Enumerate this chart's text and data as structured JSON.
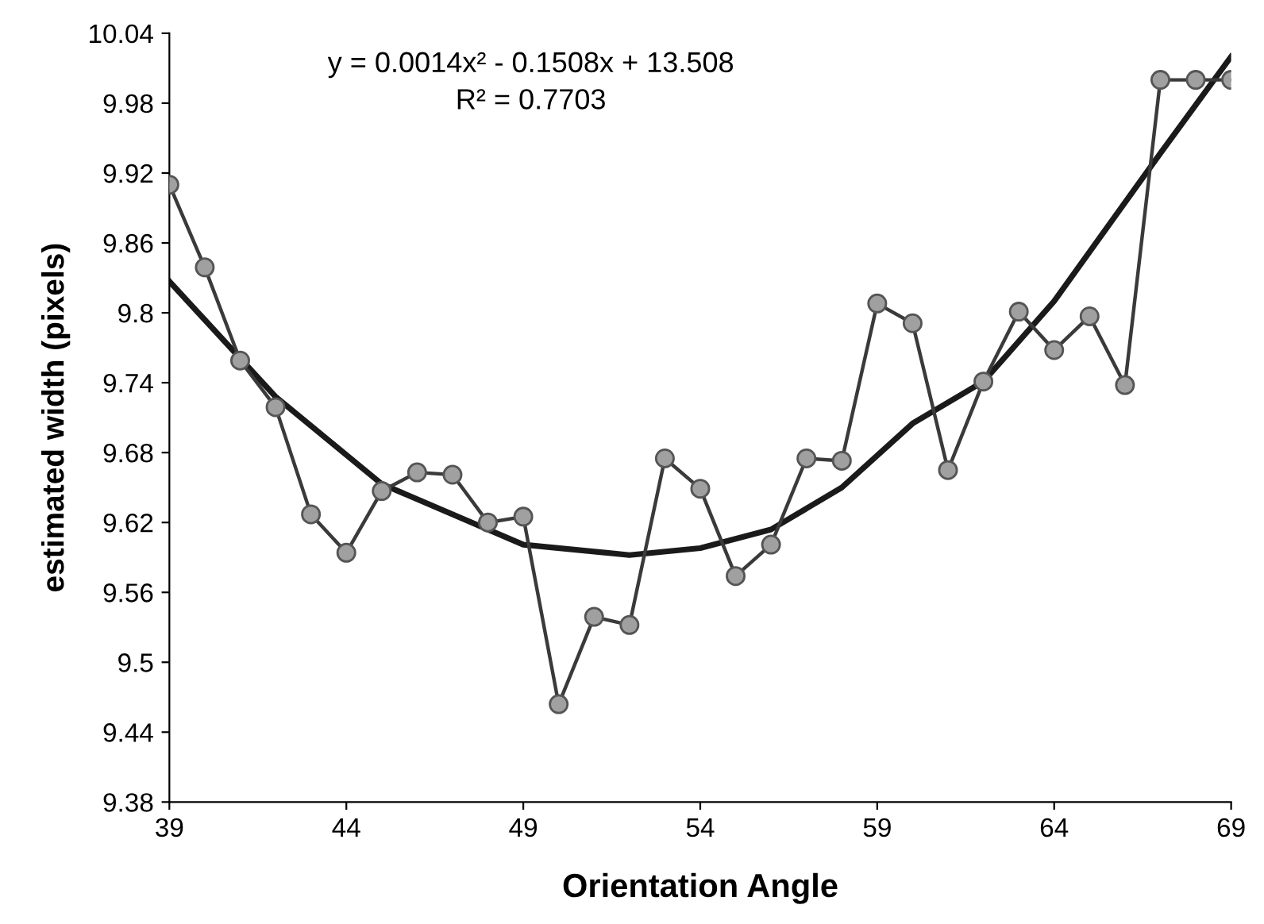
{
  "chart_data": {
    "type": "line",
    "xlabel": "Orientation Angle",
    "ylabel": "estimated width (pixels)",
    "annotations": [
      "y = 0.0014x² - 0.1508x + 13.508",
      "R² = 0.7703"
    ],
    "xlim": [
      39,
      69
    ],
    "xticks": [
      39,
      44,
      49,
      54,
      59,
      64,
      69
    ],
    "ylim": [
      9.38,
      10.04
    ],
    "yticks": [
      9.38,
      9.44,
      9.5,
      9.56,
      9.62,
      9.68,
      9.74,
      9.8,
      9.86,
      9.92,
      9.98,
      10.04
    ],
    "grid": false,
    "legend": false,
    "series": [
      {
        "color": "#3a3a3a",
        "marker": "circle",
        "line_style": "solid",
        "x": [
          39,
          40,
          41,
          42,
          43,
          44,
          45,
          46,
          47,
          48,
          49,
          50,
          51,
          52,
          53,
          54,
          55,
          56,
          57,
          58,
          59,
          60,
          61,
          62,
          63,
          64,
          65,
          66,
          67,
          68,
          69
        ],
        "values": [
          9.91,
          9.839,
          9.759,
          9.719,
          9.627,
          9.594,
          9.647,
          9.663,
          9.661,
          9.62,
          9.625,
          9.464,
          9.539,
          9.532,
          9.675,
          9.649,
          9.574,
          9.601,
          9.675,
          9.673,
          9.808,
          9.791,
          9.665,
          9.741,
          9.801,
          9.768,
          9.797,
          9.738,
          10.0,
          10.0,
          10.0
        ]
      },
      {
        "color": "#1a1a1a",
        "marker": "none",
        "line_style": "solid",
        "x": [
          39,
          42,
          45,
          49,
          52,
          54,
          56,
          58,
          60,
          62,
          64,
          67,
          69
        ],
        "values": [
          9.827,
          9.728,
          9.653,
          9.601,
          9.592,
          9.598,
          9.614,
          9.65,
          9.705,
          9.741,
          9.81,
          9.937,
          10.02
        ]
      }
    ]
  }
}
